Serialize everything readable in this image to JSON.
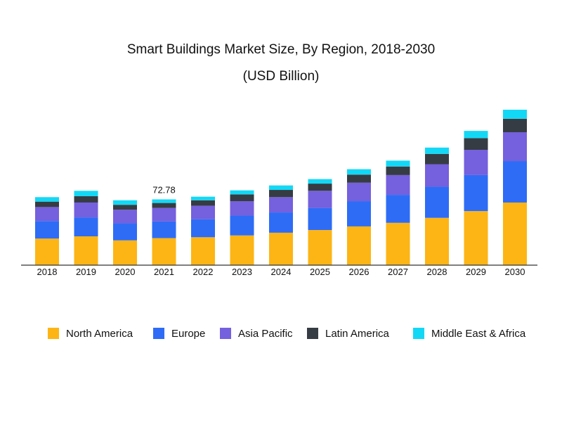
{
  "chart_data": {
    "type": "bar",
    "stacked": true,
    "title": "Smart Buildings Market Size, By Region, 2018-2030",
    "subtitle": "(USD Billion)",
    "categories": [
      "2018",
      "2019",
      "2020",
      "2021",
      "2022",
      "2023",
      "2024",
      "2025",
      "2026",
      "2027",
      "2028",
      "2029",
      "2030"
    ],
    "series": [
      {
        "name": "North America",
        "color": "#FDB515",
        "values": [
          29.5,
          32.0,
          27.5,
          30.0,
          31.0,
          33.0,
          36.0,
          39.0,
          43.0,
          47.0,
          52.5,
          60.0,
          69.5
        ]
      },
      {
        "name": "Europe",
        "color": "#2E6CF6",
        "values": [
          19.5,
          21.0,
          19.0,
          18.5,
          20.0,
          22.0,
          22.5,
          24.5,
          28.0,
          31.0,
          34.5,
          40.0,
          46.0
        ]
      },
      {
        "name": "Asia Pacific",
        "color": "#7560DE",
        "values": [
          15.5,
          16.5,
          15.0,
          15.0,
          15.0,
          16.0,
          17.0,
          19.0,
          20.5,
          22.0,
          25.0,
          28.0,
          32.0
        ]
      },
      {
        "name": "Latin America",
        "color": "#363C43",
        "values": [
          6.0,
          7.0,
          5.5,
          5.5,
          6.0,
          7.5,
          8.0,
          8.0,
          9.0,
          9.5,
          11.5,
          13.0,
          15.0
        ]
      },
      {
        "name": "Middle East & Africa",
        "color": "#13D8F5",
        "values": [
          5.0,
          6.0,
          5.0,
          4.0,
          4.0,
          4.5,
          5.0,
          5.0,
          6.0,
          6.5,
          7.0,
          8.0,
          10.0
        ]
      }
    ],
    "data_labels": [
      {
        "category": "2021",
        "text": "72.78"
      }
    ],
    "ylim": [
      0,
      185
    ],
    "legend_position": "bottom",
    "grid": false
  }
}
